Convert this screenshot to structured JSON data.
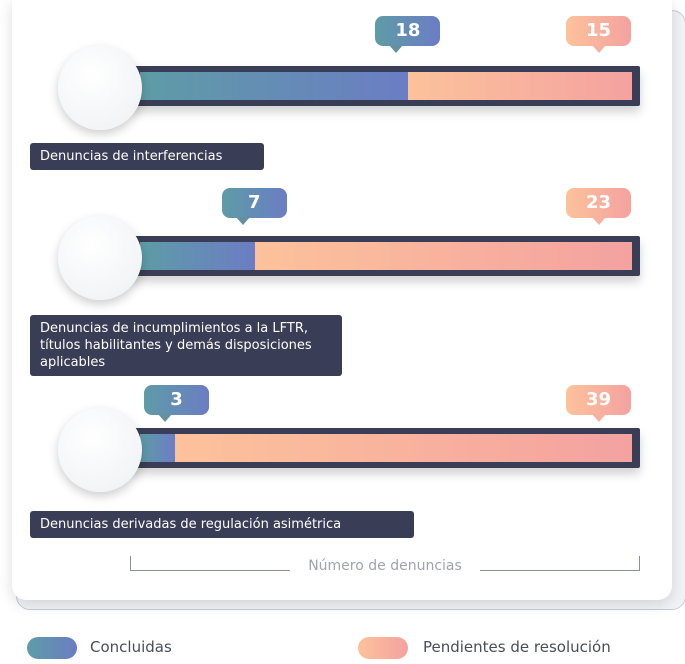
{
  "chart_data": {
    "type": "bar",
    "orientation": "horizontal",
    "stacked": "percent",
    "categories": [
      "Denuncias de interferencias",
      "Denuncias de incumplimientos a la LFTR, títulos habilitantes y demás disposiciones aplicables",
      "Denuncias derivadas de regulación asimétrica"
    ],
    "series": [
      {
        "name": "Concluidas",
        "color": "#6589b6",
        "values": [
          18,
          7,
          3
        ]
      },
      {
        "name": "Pendientes de resolución",
        "color": "#f8b09e",
        "values": [
          15,
          23,
          39
        ]
      }
    ],
    "xlabel": "Número de denuncias"
  }
}
